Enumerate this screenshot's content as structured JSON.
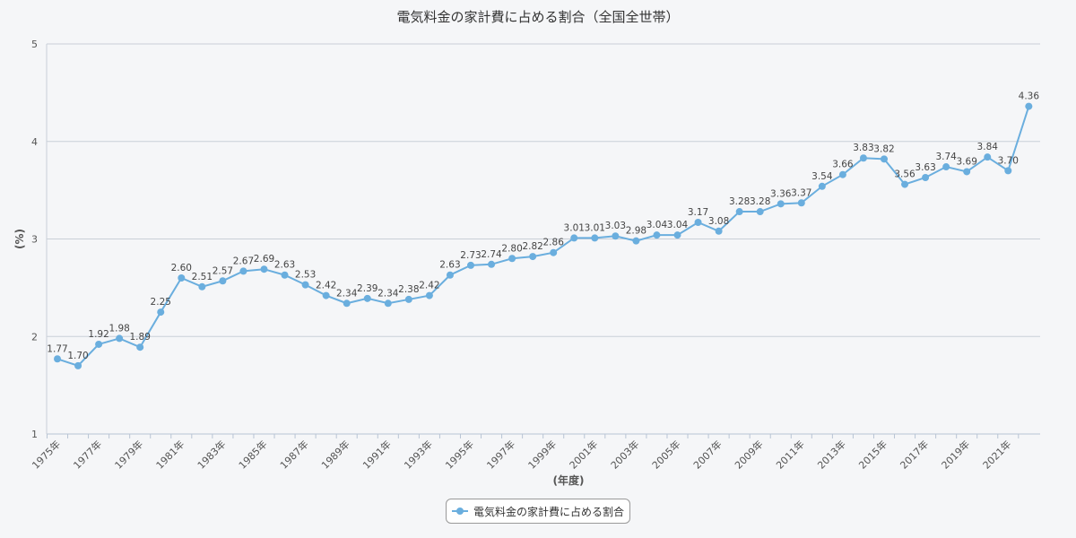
{
  "chart_title": "電気料金の家計費に占める割合（全国全世帯）",
  "chart_data": {
    "type": "line",
    "title": "電気料金の家計費に占める割合（全国全世帯）",
    "xlabel": "(年度)",
    "ylabel": "(%)",
    "ylim": [
      1,
      5
    ],
    "yticks": [
      "1",
      "2",
      "3",
      "4",
      "5"
    ],
    "grid": true,
    "legend_position": "bottom-center",
    "series_color": "#6aaede",
    "x": [
      1975,
      1976,
      1977,
      1978,
      1979,
      1980,
      1981,
      1982,
      1983,
      1984,
      1985,
      1986,
      1987,
      1988,
      1989,
      1990,
      1991,
      1992,
      1993,
      1994,
      1995,
      1996,
      1997,
      1998,
      1999,
      2000,
      2001,
      2002,
      2003,
      2004,
      2005,
      2006,
      2007,
      2008,
      2009,
      2010,
      2011,
      2012,
      2013,
      2014,
      2015,
      2016,
      2017,
      2018,
      2019,
      2020,
      2021,
      2022
    ],
    "x_tick_labels": [
      "1975年",
      "1977年",
      "1979年",
      "1981年",
      "1983年",
      "1985年",
      "1987年",
      "1989年",
      "1991年",
      "1993年",
      "1995年",
      "1997年",
      "1999年",
      "2001年",
      "2003年",
      "2005年",
      "2007年",
      "2009年",
      "2011年",
      "2013年",
      "2015年",
      "2017年",
      "2019年",
      "2021年"
    ],
    "series": [
      {
        "name": "電気料金の家計費に占める割合",
        "values": [
          1.77,
          1.7,
          1.92,
          1.98,
          1.89,
          2.25,
          2.6,
          2.51,
          2.57,
          2.67,
          2.69,
          2.63,
          2.53,
          2.42,
          2.34,
          2.39,
          2.34,
          2.38,
          2.42,
          2.63,
          2.73,
          2.74,
          2.8,
          2.82,
          2.86,
          3.01,
          3.01,
          3.03,
          2.98,
          3.04,
          3.04,
          3.17,
          3.08,
          3.28,
          3.28,
          3.36,
          3.37,
          3.54,
          3.66,
          3.83,
          3.82,
          3.56,
          3.63,
          3.74,
          3.69,
          3.84,
          3.7,
          4.36
        ],
        "data_labels": [
          "1.77",
          "1.70",
          "1.92",
          "1.98",
          "1.89",
          "2.25",
          "2.60",
          "2.51",
          "2.57",
          "2.67",
          "2.69",
          "2.63",
          "2.53",
          "2.42",
          "2.34",
          "2.39",
          "2.34",
          "2.38",
          "2.42",
          "2.63",
          "2.73",
          "2.74",
          "2.80",
          "2.82",
          "2.86",
          "3.01",
          "3.01",
          "3.03",
          "2.98",
          "3.04",
          "3.04",
          "3.17",
          "3.08",
          "3.28",
          "3.28",
          "3.36",
          "3.37",
          "3.54",
          "3.66",
          "3.83",
          "3.82",
          "3.56",
          "3.63",
          "3.74",
          "3.69",
          "3.84",
          "3.70",
          "4.36"
        ]
      }
    ]
  }
}
